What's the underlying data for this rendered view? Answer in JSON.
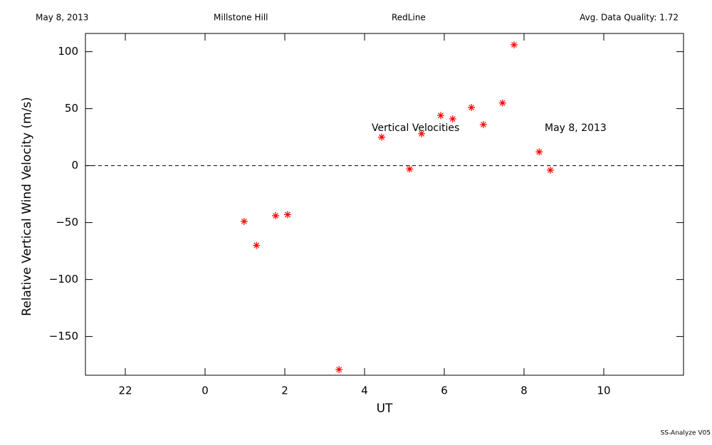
{
  "chart_data": {
    "type": "scatter",
    "header": [
      "May 8, 2013",
      "Millstone Hill",
      "RedLine",
      "Avg. Data Quality: 1.72"
    ],
    "xlabel": "UT",
    "ylabel": "Relative Vertical Wind Velocity (m/s)",
    "annotations": [
      "Vertical Velocities",
      "May 8, 2013"
    ],
    "footer": "SS-Analyze V05",
    "xlim": [
      -3,
      12
    ],
    "ylim": [
      -184,
      116
    ],
    "xticks": [
      {
        "value": -2,
        "label": "22"
      },
      0,
      2,
      4,
      6,
      8,
      10
    ],
    "yticks": [
      {
        "value": -150,
        "label": "−150"
      },
      {
        "value": -100,
        "label": "−100"
      },
      {
        "value": -50,
        "label": "−50"
      },
      0,
      50,
      100
    ],
    "series": [
      {
        "color": "#ff0000",
        "x": [
          0.98,
          1.29,
          1.77,
          2.07,
          3.36,
          4.43,
          5.13,
          5.43,
          5.91,
          6.21,
          6.68,
          6.98,
          7.46,
          7.75,
          8.38,
          8.66
        ],
        "values": [
          -49,
          -70,
          -44,
          -43,
          -179,
          25,
          -3,
          28,
          44,
          41,
          51,
          36,
          55,
          106,
          12,
          -4
        ]
      }
    ]
  }
}
